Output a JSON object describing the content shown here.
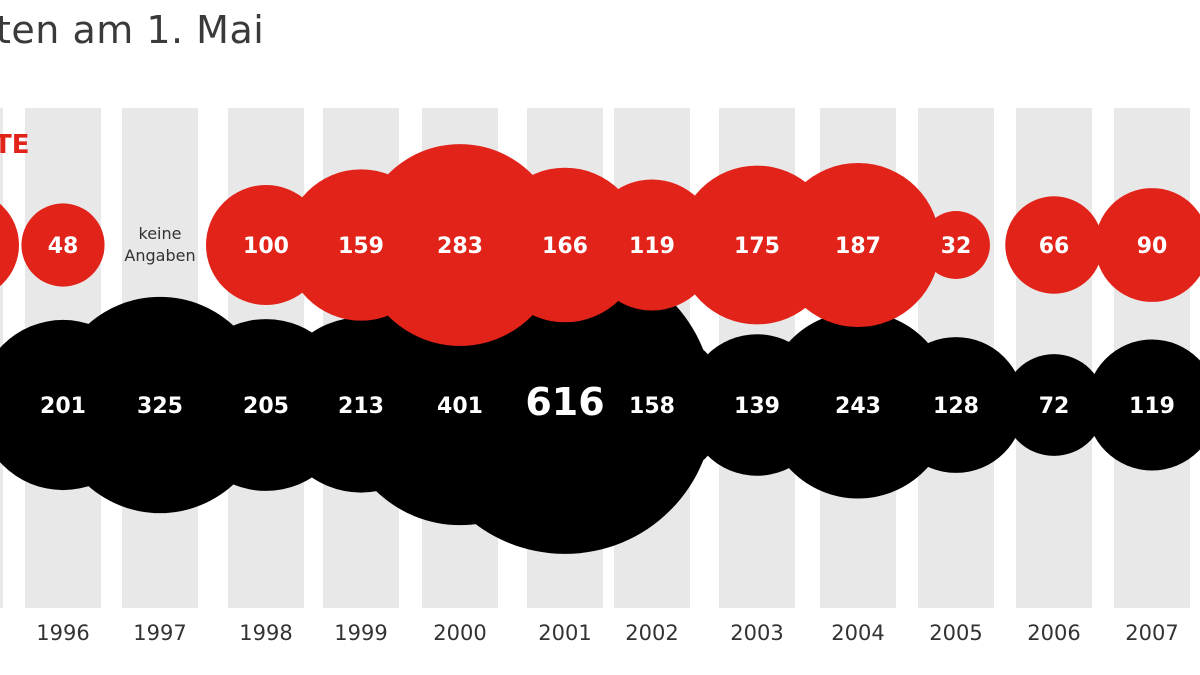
{
  "title": "ten am 1. Mai",
  "series_label": "TE",
  "colors": {
    "series_red": "#e2231a",
    "series_black": "#000000",
    "column_bg": "#e8e8e8",
    "label_text": "#ffffff",
    "axis_text": "#333333"
  },
  "chart_data": {
    "type": "bubble",
    "title": "ten am 1. Mai",
    "categories": [
      "",
      "1996",
      "1997",
      "1998",
      "1999",
      "2000",
      "2001",
      "2002",
      "2003",
      "2004",
      "2005",
      "2006",
      "2007"
    ],
    "series": [
      {
        "name": "TE",
        "color": "#e2231a",
        "values": [
          null,
          48,
          null,
          100,
          159,
          283,
          166,
          119,
          175,
          187,
          32,
          66,
          90
        ],
        "missing_label": "keine Angaben"
      },
      {
        "color": "#000000",
        "values": [
          null,
          201,
          325,
          205,
          213,
          401,
          616,
          158,
          139,
          243,
          128,
          72,
          119
        ]
      }
    ],
    "missing_label_lines": [
      "keine",
      "Angaben"
    ],
    "highlight": {
      "category": "2001",
      "value": 616
    },
    "grid": true,
    "legend": "none"
  }
}
